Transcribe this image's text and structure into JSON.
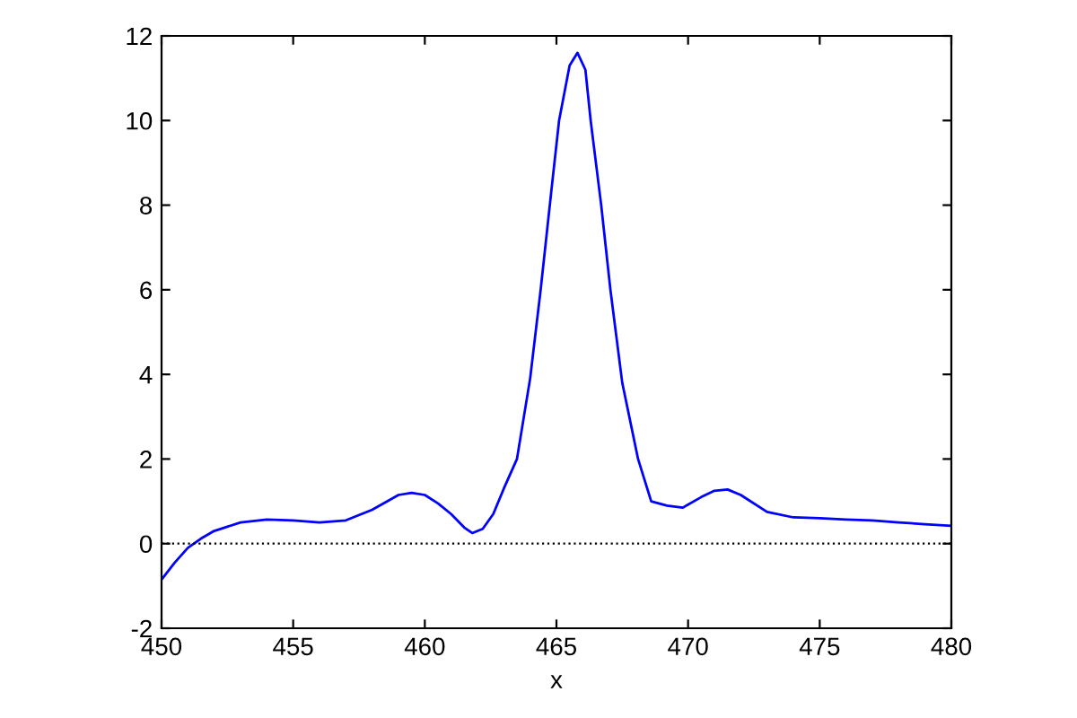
{
  "chart_data": {
    "type": "line",
    "xlabel": "x",
    "series": [
      {
        "color": "#0000ff",
        "x": [
          450,
          450.5,
          451,
          451.5,
          452,
          453,
          454,
          455,
          456,
          457,
          458,
          459,
          459.5,
          460,
          460.5,
          461,
          461.5,
          461.8,
          462.2,
          462.6,
          463,
          463.5,
          464,
          464.4,
          464.8,
          465.1,
          465.5,
          465.8,
          466.1,
          466.3,
          466.7,
          467.05,
          467.5,
          468.1,
          468.6,
          469.2,
          469.8,
          470.5,
          471,
          471.5,
          472,
          473,
          474,
          475,
          476,
          477,
          478,
          479,
          480
        ],
        "values": [
          -0.85,
          -0.45,
          -0.1,
          0.12,
          0.3,
          0.5,
          0.57,
          0.55,
          0.5,
          0.55,
          0.8,
          1.15,
          1.2,
          1.15,
          0.95,
          0.7,
          0.38,
          0.25,
          0.35,
          0.7,
          1.3,
          2.0,
          3.9,
          6.0,
          8.3,
          10.0,
          11.3,
          11.6,
          11.2,
          10.0,
          8.0,
          6.0,
          3.8,
          2.0,
          1.0,
          0.9,
          0.85,
          1.1,
          1.25,
          1.28,
          1.15,
          0.75,
          0.62,
          0.6,
          0.57,
          0.55,
          0.5,
          0.46,
          0.42
        ]
      }
    ],
    "xlim": [
      450,
      480
    ],
    "xticks": [
      450,
      455,
      460,
      465,
      470,
      475,
      480
    ],
    "ylim": [
      -2,
      12
    ],
    "yticks": [
      -2,
      0,
      2,
      4,
      6,
      8,
      10,
      12
    ],
    "ref_lines": [
      {
        "axis": "y",
        "value": 0,
        "color": "#000000",
        "line_style": "dotted"
      }
    ],
    "grid": false,
    "legend": false
  }
}
